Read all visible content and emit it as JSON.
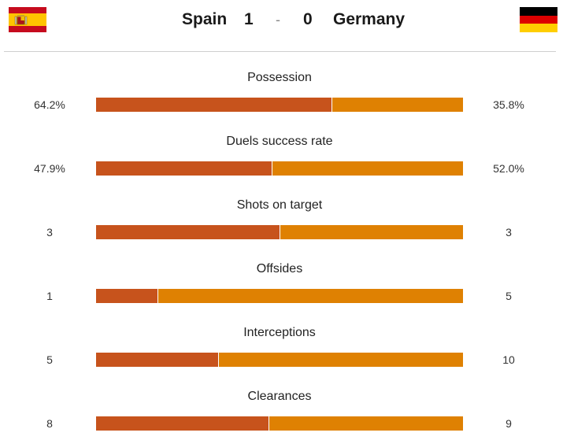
{
  "match": {
    "home_team": "Spain",
    "away_team": "Germany",
    "home_score": "1",
    "separator": "-",
    "away_score": "0",
    "home_flag_icon": "spain-flag-icon",
    "away_flag_icon": "germany-flag-icon"
  },
  "colors": {
    "home_bar": "#c7531c",
    "away_bar": "#df8102",
    "spain_red": "#c60b1e",
    "spain_yellow": "#ffc400",
    "germany_black": "#000000",
    "germany_red": "#dd0000",
    "germany_gold": "#ffce00"
  },
  "chart_data": {
    "type": "bar",
    "orientation": "horizontal-stacked",
    "series": [
      {
        "name": "Spain",
        "values": [
          64.2,
          47.9,
          3,
          1,
          5,
          8
        ]
      },
      {
        "name": "Germany",
        "values": [
          35.8,
          52.0,
          3,
          5,
          10,
          9
        ]
      }
    ],
    "categories": [
      "Possession",
      "Duels success rate",
      "Shots on target",
      "Offsides",
      "Interceptions",
      "Clearances"
    ],
    "stats": [
      {
        "label": "Possession",
        "home": 64.2,
        "away": 35.8,
        "home_display": "64.2%",
        "away_display": "35.8%"
      },
      {
        "label": "Duels success rate",
        "home": 47.9,
        "away": 52.0,
        "home_display": "47.9%",
        "away_display": "52.0%"
      },
      {
        "label": "Shots on target",
        "home": 3,
        "away": 3,
        "home_display": "3",
        "away_display": "3"
      },
      {
        "label": "Offsides",
        "home": 1,
        "away": 5,
        "home_display": "1",
        "away_display": "5"
      },
      {
        "label": "Interceptions",
        "home": 5,
        "away": 10,
        "home_display": "5",
        "away_display": "10"
      },
      {
        "label": "Clearances",
        "home": 8,
        "away": 9,
        "home_display": "8",
        "away_display": "9"
      }
    ],
    "legend": "none",
    "grid": false
  }
}
